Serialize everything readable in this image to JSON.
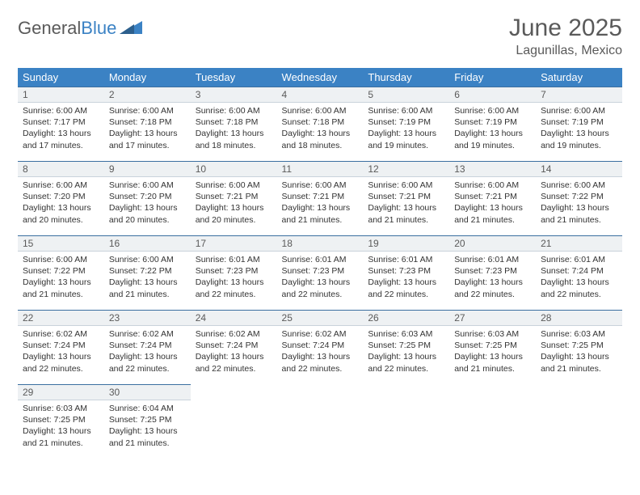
{
  "brand": {
    "part1": "General",
    "part2": "Blue"
  },
  "header": {
    "title": "June 2025",
    "location": "Lagunillas, Mexico"
  },
  "colors": {
    "header_bg": "#3b82c4",
    "header_text": "#ffffff",
    "daybar_bg": "#eef1f3",
    "daybar_border_top": "#3b6fa0",
    "text": "#333333",
    "muted": "#5a5a5a"
  },
  "weekdays": [
    "Sunday",
    "Monday",
    "Tuesday",
    "Wednesday",
    "Thursday",
    "Friday",
    "Saturday"
  ],
  "days": [
    {
      "n": 1,
      "sunrise": "6:00 AM",
      "sunset": "7:17 PM",
      "daylight": "13 hours and 17 minutes."
    },
    {
      "n": 2,
      "sunrise": "6:00 AM",
      "sunset": "7:18 PM",
      "daylight": "13 hours and 17 minutes."
    },
    {
      "n": 3,
      "sunrise": "6:00 AM",
      "sunset": "7:18 PM",
      "daylight": "13 hours and 18 minutes."
    },
    {
      "n": 4,
      "sunrise": "6:00 AM",
      "sunset": "7:18 PM",
      "daylight": "13 hours and 18 minutes."
    },
    {
      "n": 5,
      "sunrise": "6:00 AM",
      "sunset": "7:19 PM",
      "daylight": "13 hours and 19 minutes."
    },
    {
      "n": 6,
      "sunrise": "6:00 AM",
      "sunset": "7:19 PM",
      "daylight": "13 hours and 19 minutes."
    },
    {
      "n": 7,
      "sunrise": "6:00 AM",
      "sunset": "7:19 PM",
      "daylight": "13 hours and 19 minutes."
    },
    {
      "n": 8,
      "sunrise": "6:00 AM",
      "sunset": "7:20 PM",
      "daylight": "13 hours and 20 minutes."
    },
    {
      "n": 9,
      "sunrise": "6:00 AM",
      "sunset": "7:20 PM",
      "daylight": "13 hours and 20 minutes."
    },
    {
      "n": 10,
      "sunrise": "6:00 AM",
      "sunset": "7:21 PM",
      "daylight": "13 hours and 20 minutes."
    },
    {
      "n": 11,
      "sunrise": "6:00 AM",
      "sunset": "7:21 PM",
      "daylight": "13 hours and 21 minutes."
    },
    {
      "n": 12,
      "sunrise": "6:00 AM",
      "sunset": "7:21 PM",
      "daylight": "13 hours and 21 minutes."
    },
    {
      "n": 13,
      "sunrise": "6:00 AM",
      "sunset": "7:21 PM",
      "daylight": "13 hours and 21 minutes."
    },
    {
      "n": 14,
      "sunrise": "6:00 AM",
      "sunset": "7:22 PM",
      "daylight": "13 hours and 21 minutes."
    },
    {
      "n": 15,
      "sunrise": "6:00 AM",
      "sunset": "7:22 PM",
      "daylight": "13 hours and 21 minutes."
    },
    {
      "n": 16,
      "sunrise": "6:00 AM",
      "sunset": "7:22 PM",
      "daylight": "13 hours and 21 minutes."
    },
    {
      "n": 17,
      "sunrise": "6:01 AM",
      "sunset": "7:23 PM",
      "daylight": "13 hours and 22 minutes."
    },
    {
      "n": 18,
      "sunrise": "6:01 AM",
      "sunset": "7:23 PM",
      "daylight": "13 hours and 22 minutes."
    },
    {
      "n": 19,
      "sunrise": "6:01 AM",
      "sunset": "7:23 PM",
      "daylight": "13 hours and 22 minutes."
    },
    {
      "n": 20,
      "sunrise": "6:01 AM",
      "sunset": "7:23 PM",
      "daylight": "13 hours and 22 minutes."
    },
    {
      "n": 21,
      "sunrise": "6:01 AM",
      "sunset": "7:24 PM",
      "daylight": "13 hours and 22 minutes."
    },
    {
      "n": 22,
      "sunrise": "6:02 AM",
      "sunset": "7:24 PM",
      "daylight": "13 hours and 22 minutes."
    },
    {
      "n": 23,
      "sunrise": "6:02 AM",
      "sunset": "7:24 PM",
      "daylight": "13 hours and 22 minutes."
    },
    {
      "n": 24,
      "sunrise": "6:02 AM",
      "sunset": "7:24 PM",
      "daylight": "13 hours and 22 minutes."
    },
    {
      "n": 25,
      "sunrise": "6:02 AM",
      "sunset": "7:24 PM",
      "daylight": "13 hours and 22 minutes."
    },
    {
      "n": 26,
      "sunrise": "6:03 AM",
      "sunset": "7:25 PM",
      "daylight": "13 hours and 22 minutes."
    },
    {
      "n": 27,
      "sunrise": "6:03 AM",
      "sunset": "7:25 PM",
      "daylight": "13 hours and 21 minutes."
    },
    {
      "n": 28,
      "sunrise": "6:03 AM",
      "sunset": "7:25 PM",
      "daylight": "13 hours and 21 minutes."
    },
    {
      "n": 29,
      "sunrise": "6:03 AM",
      "sunset": "7:25 PM",
      "daylight": "13 hours and 21 minutes."
    },
    {
      "n": 30,
      "sunrise": "6:04 AM",
      "sunset": "7:25 PM",
      "daylight": "13 hours and 21 minutes."
    }
  ],
  "labels": {
    "sunrise": "Sunrise:",
    "sunset": "Sunset:",
    "daylight": "Daylight:"
  },
  "layout": {
    "start_offset": 0,
    "total_cells": 35
  }
}
